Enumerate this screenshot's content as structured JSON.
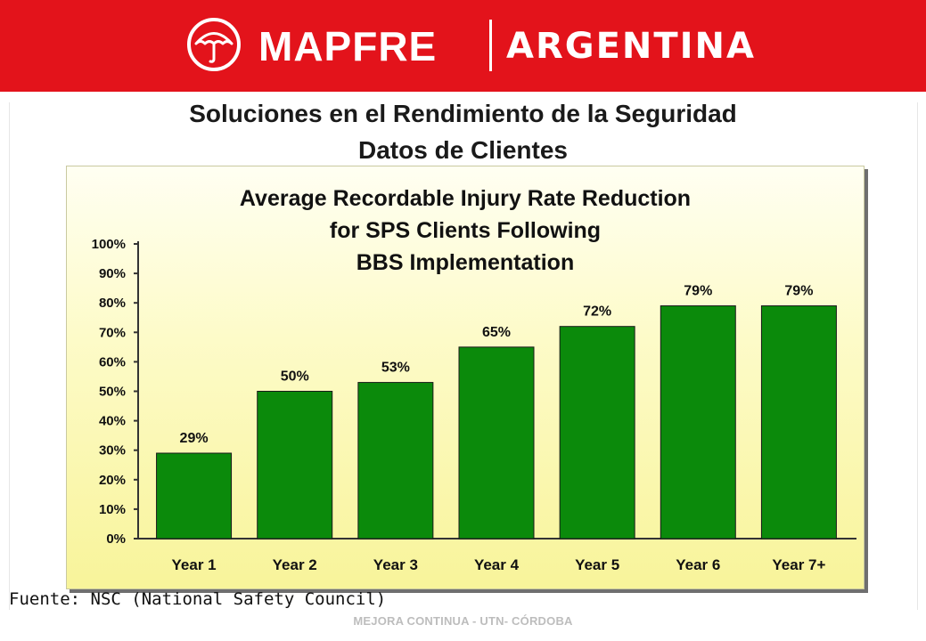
{
  "header": {
    "brand": "MAPFRE",
    "country": "ARGENTINA",
    "emblem_icon": "mapfre-umbrella-emblem",
    "background_color": "#e3131b"
  },
  "slide": {
    "title_line1": "Soluciones en el Rendimiento de la Seguridad",
    "title_line2": "Datos de Clientes",
    "source": "Fuente: NSC (National Safety Council)",
    "footer": "MEJORA CONTINUA - UTN- CÓRDOBA"
  },
  "chart_data": {
    "type": "bar",
    "title_lines": [
      "Average Recordable Injury Rate Reduction",
      "for SPS Clients Following",
      "BBS Implementation"
    ],
    "categories": [
      "Year 1",
      "Year 2",
      "Year 3",
      "Year 4",
      "Year 5",
      "Year 6",
      "Year 7+"
    ],
    "values": [
      29,
      50,
      53,
      65,
      72,
      79,
      79
    ],
    "data_labels": [
      "29%",
      "50%",
      "53%",
      "65%",
      "72%",
      "79%",
      "79%"
    ],
    "y_ticks": [
      "0%",
      "10%",
      "20%",
      "30%",
      "40%",
      "50%",
      "60%",
      "70%",
      "80%",
      "90%",
      "100%"
    ],
    "ylim": [
      0,
      100
    ],
    "xlabel": "",
    "ylabel": "",
    "grid": false,
    "bar_color": "#0b8a0b",
    "background_color": "#fdfbc9"
  }
}
